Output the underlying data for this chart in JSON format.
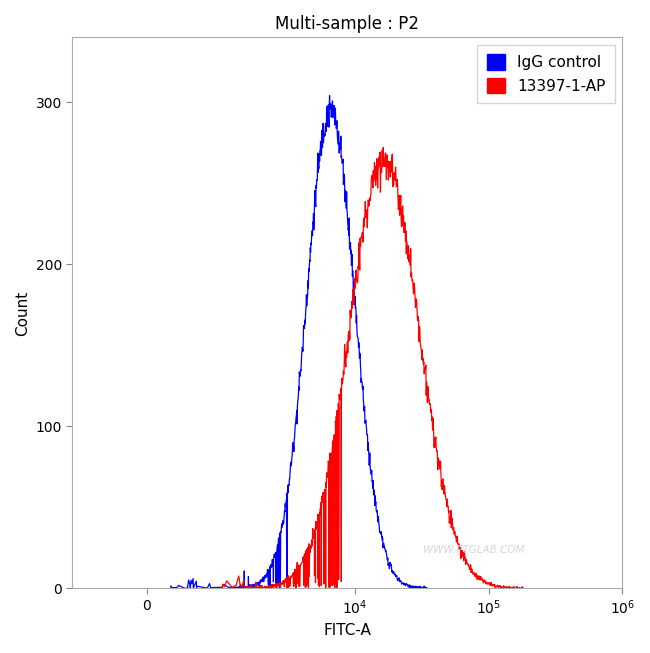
{
  "title": "Multi-sample : P2",
  "xlabel": "FITC-A",
  "ylabel": "Count",
  "ylim": [
    0,
    340
  ],
  "yticks": [
    0,
    100,
    200,
    300
  ],
  "xlim_left": -1000,
  "xlim_right": 1000000,
  "blue_label": "IgG control",
  "red_label": "13397-1-AP",
  "blue_color": "#0000FF",
  "red_color": "#FF0000",
  "watermark": "WWW.PTGLAB.COM",
  "blue_peak_log": 3.82,
  "blue_peak_y": 295,
  "blue_sigma": 0.18,
  "red_peak_log": 4.22,
  "red_peak_y": 265,
  "red_sigma": 0.26,
  "background_color": "#ffffff",
  "panel_color": "#ffffff",
  "title_fontsize": 12,
  "axis_fontsize": 11,
  "tick_fontsize": 10,
  "legend_fontsize": 11
}
